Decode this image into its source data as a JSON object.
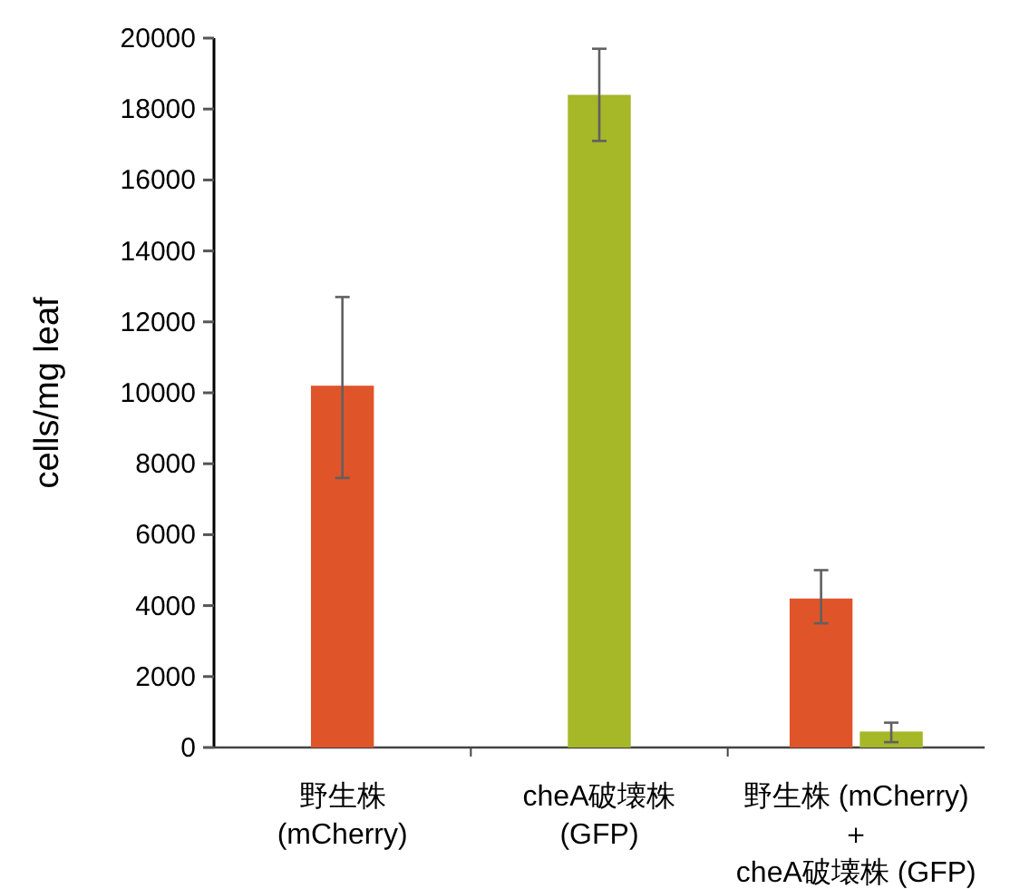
{
  "chart_data": {
    "type": "bar",
    "ylabel": "cells/mg leaf",
    "categories": [
      "野生株\n(mCherry)",
      "cheA破壊株\n(GFP)",
      "野生株 (mCherry)\n＋\ncheA破壊株 (GFP)"
    ],
    "series": [
      {
        "color": "#e0542a",
        "values": [
          10200,
          null,
          4200
        ],
        "errors": [
          [
            7600,
            12700
          ],
          null,
          [
            3500,
            5000
          ]
        ]
      },
      {
        "color": "#a6b728",
        "values": [
          null,
          18400,
          450
        ],
        "errors": [
          null,
          [
            17100,
            19700
          ],
          [
            150,
            700
          ]
        ]
      }
    ],
    "ylim": [
      0,
      20000
    ],
    "yticks": [
      0,
      2000,
      4000,
      6000,
      8000,
      10000,
      12000,
      14000,
      16000,
      18000,
      20000
    ]
  }
}
